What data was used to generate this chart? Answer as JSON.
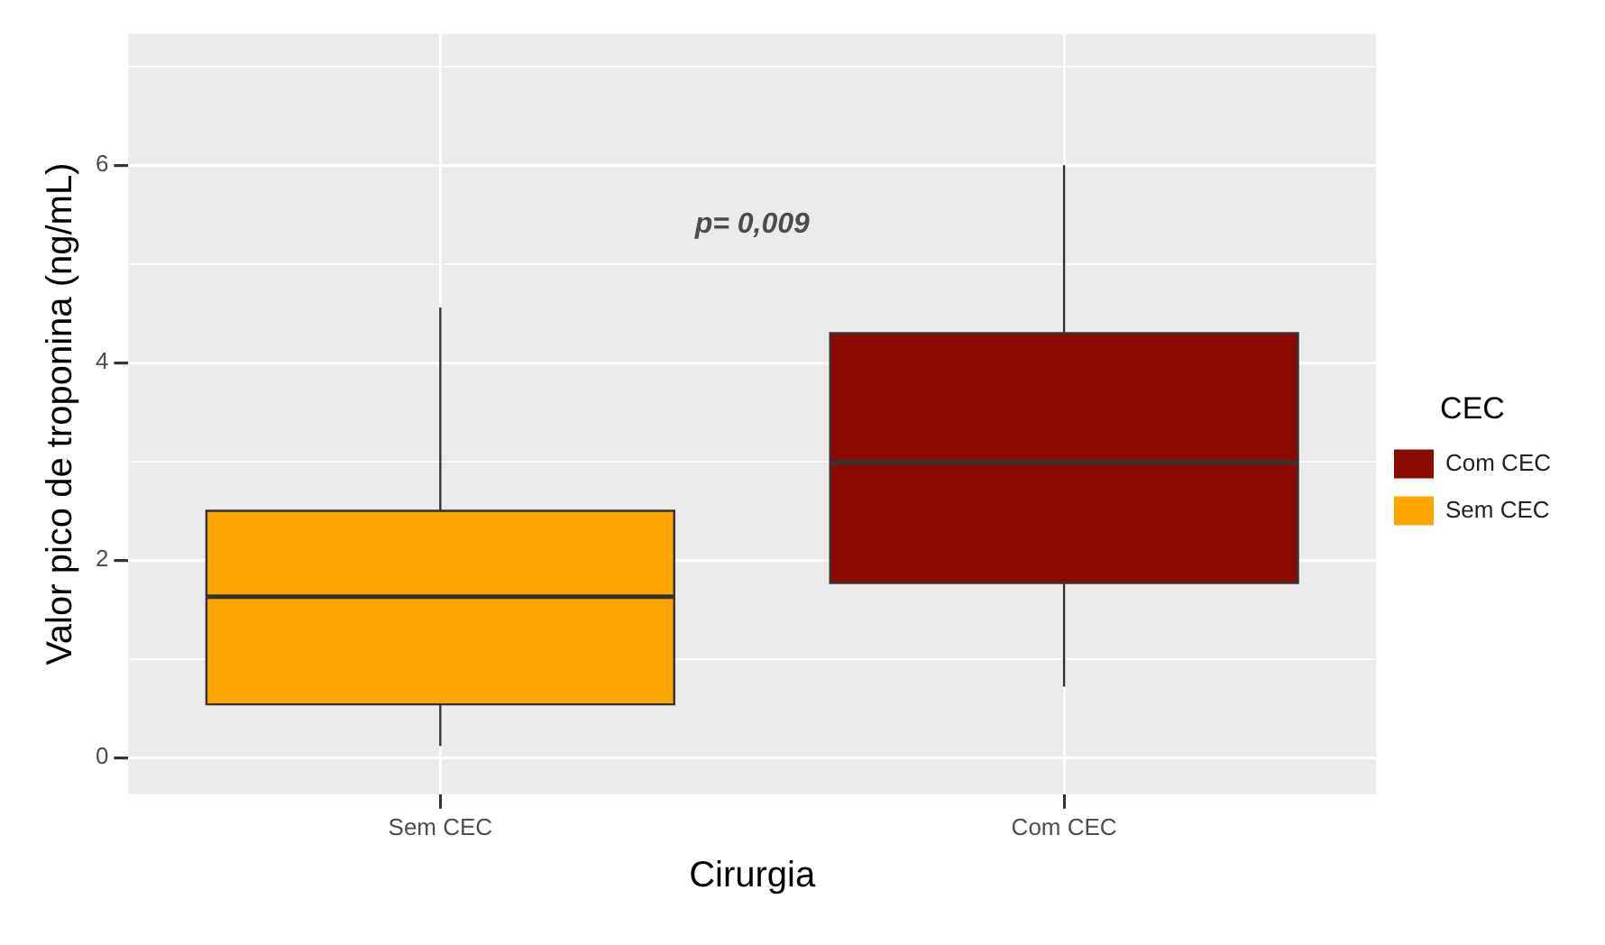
{
  "chart_data": {
    "type": "box",
    "xlabel": "Cirurgia",
    "ylabel": "Valor pico de troponina (ng/mL)",
    "legend_title": "CEC",
    "categories": [
      "Sem CEC",
      "Com CEC"
    ],
    "series": [
      {
        "name": "Com CEC",
        "color": "#8b0a00",
        "boxes": [
          null,
          {
            "low": 0.72,
            "q1": 1.77,
            "median": 2.99,
            "q3": 4.3,
            "high": 6.0
          }
        ]
      },
      {
        "name": "Sem CEC",
        "color": "#ffa500",
        "boxes": [
          {
            "low": 0.12,
            "q1": 0.54,
            "median": 1.63,
            "q3": 2.5,
            "high": 4.56
          },
          null
        ]
      }
    ],
    "ylim": [
      -0.37,
      7.33
    ],
    "yticks": [
      0,
      {
        "value": 1,
        "label": null
      },
      2,
      {
        "value": 3,
        "label": null
      },
      4,
      {
        "value": 5,
        "label": null
      },
      6,
      {
        "value": 7,
        "label": null
      }
    ],
    "annotations": [
      "p= 0,009"
    ],
    "grid": true,
    "legend": "right"
  }
}
